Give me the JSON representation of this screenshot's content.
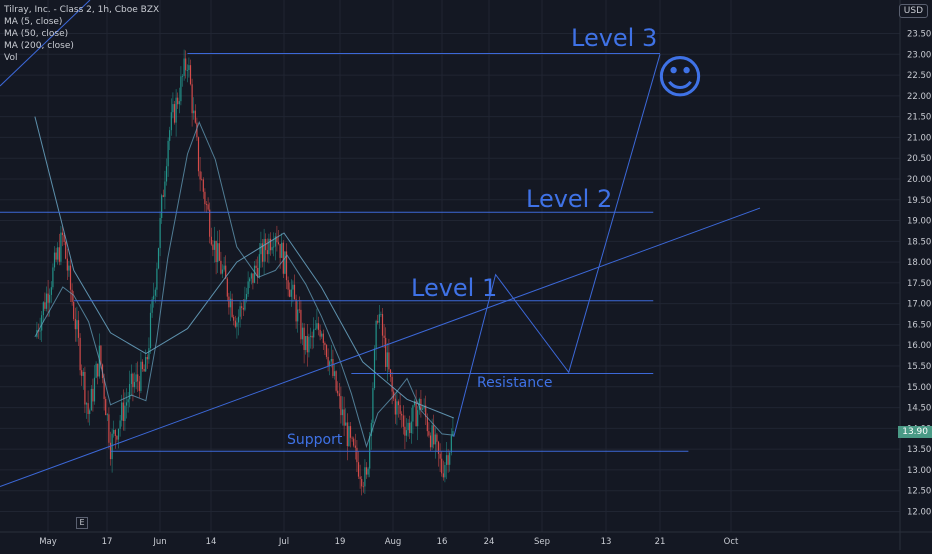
{
  "header": {
    "symbol": "Tilray, Inc. - Class 2, 1h, Cboe BZX",
    "indicators": [
      "MA (5, close)",
      "MA (50, close)",
      "MA (200, close)",
      "Vol"
    ]
  },
  "currency_label": "USD",
  "current_price": "13.90",
  "earnings_marker": "E",
  "colors": {
    "background": "#141823",
    "grid": "#202532",
    "axis_text": "#c9ccd3",
    "drawing_blue": "#3c68d8",
    "annotation_text": "#3f72e6",
    "ma_line": "#6aa6c4",
    "candle_up": "#26a69a",
    "candle_down": "#ef5350",
    "price_tag": "#4a9a86"
  },
  "chart_data": {
    "type": "line",
    "title": "Tilray, Inc. - Class 2, 1h, Cboe BZX",
    "y_axis_ticks": [
      "12.00",
      "12.50",
      "13.00",
      "13.50",
      "14.00",
      "14.50",
      "15.00",
      "15.50",
      "16.00",
      "16.50",
      "17.00",
      "17.50",
      "18.00",
      "18.50",
      "19.00",
      "19.50",
      "20.00",
      "20.50",
      "21.00",
      "21.50",
      "22.00",
      "22.50",
      "23.00",
      "23.50"
    ],
    "ylim": [
      11.75,
      23.9
    ],
    "x_axis_ticks": [
      "May",
      "17",
      "Jun",
      "14",
      "Jul",
      "19",
      "Aug",
      "16",
      "24",
      "Sep",
      "13",
      "21",
      "Oct"
    ],
    "price_path": [
      {
        "x": "Apr 28",
        "y": 16.2
      },
      {
        "x": "May 5",
        "y": 18.6
      },
      {
        "x": "May 8",
        "y": 16.8
      },
      {
        "x": "May 12",
        "y": 14.3
      },
      {
        "x": "May 15",
        "y": 15.8
      },
      {
        "x": "May 18",
        "y": 13.6
      },
      {
        "x": "May 24",
        "y": 15.0
      },
      {
        "x": "May 28",
        "y": 15.4
      },
      {
        "x": "May 31",
        "y": 17.9
      },
      {
        "x": "Jun 3",
        "y": 21.0
      },
      {
        "x": "Jun 8",
        "y": 22.9
      },
      {
        "x": "Jun 11",
        "y": 20.2
      },
      {
        "x": "Jun 15",
        "y": 18.3
      },
      {
        "x": "Jun 20",
        "y": 16.6
      },
      {
        "x": "Jun 25",
        "y": 18.0
      },
      {
        "x": "Jun 29",
        "y": 18.8
      },
      {
        "x": "Jul 2",
        "y": 17.7
      },
      {
        "x": "Jul 8",
        "y": 15.9
      },
      {
        "x": "Jul 13",
        "y": 16.5
      },
      {
        "x": "Jul 19",
        "y": 14.5
      },
      {
        "x": "Jul 22",
        "y": 13.5
      },
      {
        "x": "Jul 26",
        "y": 12.7
      },
      {
        "x": "Jul 29",
        "y": 16.9
      },
      {
        "x": "Aug 2",
        "y": 14.7
      },
      {
        "x": "Aug 6",
        "y": 14.0
      },
      {
        "x": "Aug 10",
        "y": 14.6
      },
      {
        "x": "Aug 16",
        "y": 13.0
      },
      {
        "x": "Aug 18",
        "y": 13.9
      }
    ],
    "moving_average": {
      "name": "MA (200, close)",
      "points": [
        {
          "x": "Apr 28",
          "y": 21.5
        },
        {
          "x": "May 8",
          "y": 17.8
        },
        {
          "x": "May 18",
          "y": 16.3
        },
        {
          "x": "May 28",
          "y": 15.8
        },
        {
          "x": "Jun 8",
          "y": 16.4
        },
        {
          "x": "Jun 20",
          "y": 18.0
        },
        {
          "x": "Jul 1",
          "y": 18.7
        },
        {
          "x": "Jul 13",
          "y": 17.4
        },
        {
          "x": "Jul 25",
          "y": 15.6
        },
        {
          "x": "Aug 6",
          "y": 14.7
        },
        {
          "x": "Aug 18",
          "y": 14.25
        }
      ]
    },
    "drawings": {
      "horizontal_levels": [
        {
          "label": "Level 3",
          "price": 23.02
        },
        {
          "label": "Level 2",
          "price": 19.2
        },
        {
          "label": "Level 1",
          "price": 17.07
        },
        {
          "label": "Resistance",
          "price": 15.32
        },
        {
          "label": "Support",
          "price": 13.45
        }
      ],
      "rising_trendline": [
        {
          "x": "Apr 20",
          "y": 12.6
        },
        {
          "x": "Oct 5",
          "y": 19.3
        }
      ],
      "forecast_path": [
        {
          "x": "Aug 18",
          "y": 13.8
        },
        {
          "x": "Aug 25",
          "y": 17.7
        },
        {
          "x": "Sep 6",
          "y": 15.35
        },
        {
          "x": "Sep 21",
          "y": 23.0
        }
      ]
    },
    "annotations": {
      "level3": "Level 3",
      "level2": "Level 2",
      "level1": "Level 1",
      "resistance": "Resistance",
      "support": "Support",
      "smiley": "☺"
    }
  }
}
